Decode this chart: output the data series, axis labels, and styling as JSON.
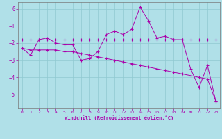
{
  "title": "",
  "xlabel": "Windchill (Refroidissement éolien,°C)",
  "background_color": "#b0e0e8",
  "line_color": "#aa00aa",
  "grid_color": "#90c8d0",
  "xlim": [
    -0.5,
    23.5
  ],
  "ylim": [
    -5.8,
    0.4
  ],
  "yticks": [
    0,
    -1,
    -2,
    -3,
    -4,
    -5
  ],
  "xticks": [
    0,
    1,
    2,
    3,
    4,
    5,
    6,
    7,
    8,
    9,
    10,
    11,
    12,
    13,
    14,
    15,
    16,
    17,
    18,
    19,
    20,
    21,
    22,
    23
  ],
  "series1_x": [
    0,
    1,
    2,
    3,
    4,
    5,
    6,
    7,
    8,
    9,
    10,
    11,
    12,
    13,
    14,
    15,
    16,
    17,
    18,
    19,
    20,
    21,
    22,
    23
  ],
  "series1_y": [
    -2.3,
    -2.7,
    -1.8,
    -1.7,
    -2.0,
    -2.1,
    -2.1,
    -3.0,
    -2.9,
    -2.5,
    -1.5,
    -1.3,
    -1.5,
    -1.2,
    0.1,
    -0.7,
    -1.7,
    -1.6,
    -1.8,
    -1.8,
    -3.5,
    -4.6,
    -3.3,
    -5.4
  ],
  "series2_x": [
    0,
    1,
    2,
    3,
    4,
    5,
    6,
    7,
    8,
    9,
    10,
    11,
    12,
    13,
    14,
    15,
    16,
    17,
    18,
    19,
    20,
    21,
    22,
    23
  ],
  "series2_y": [
    -1.8,
    -1.8,
    -1.8,
    -1.8,
    -1.8,
    -1.8,
    -1.8,
    -1.8,
    -1.8,
    -1.8,
    -1.8,
    -1.8,
    -1.8,
    -1.8,
    -1.8,
    -1.8,
    -1.8,
    -1.8,
    -1.8,
    -1.8,
    -1.8,
    -1.8,
    -1.8,
    -1.8
  ],
  "series3_x": [
    0,
    1,
    2,
    3,
    4,
    5,
    6,
    7,
    8,
    9,
    10,
    11,
    12,
    13,
    14,
    15,
    16,
    17,
    18,
    19,
    20,
    21,
    22,
    23
  ],
  "series3_y": [
    -2.3,
    -2.4,
    -2.4,
    -2.4,
    -2.4,
    -2.5,
    -2.5,
    -2.6,
    -2.7,
    -2.8,
    -2.9,
    -3.0,
    -3.1,
    -3.2,
    -3.3,
    -3.4,
    -3.5,
    -3.6,
    -3.7,
    -3.8,
    -3.9,
    -4.0,
    -4.1,
    -5.4
  ]
}
